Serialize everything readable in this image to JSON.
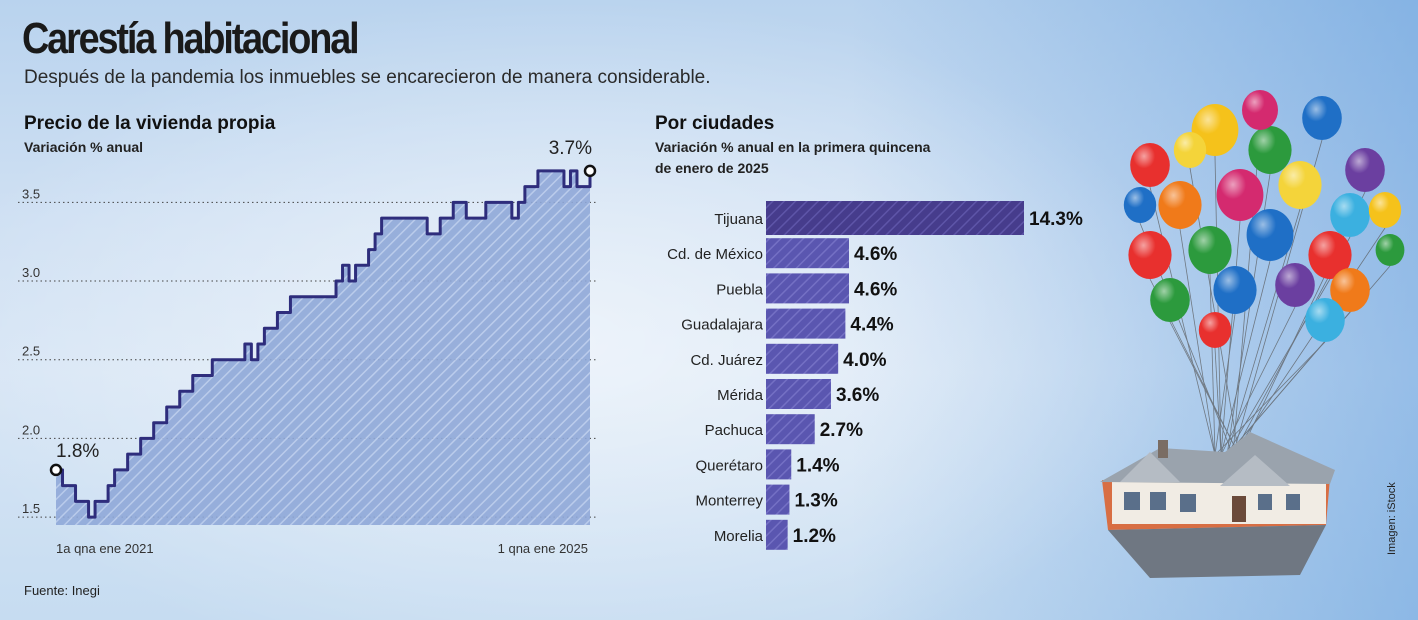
{
  "header": {
    "title": "Carestía habitacional",
    "subtitle": "Después de la pandemia los inmuebles se encarecieron de manera considerable."
  },
  "footer": {
    "source": "Fuente: Inegi",
    "image_credit": "Imagen: iStock"
  },
  "colors": {
    "line": "#2e2d7c",
    "area": "#8fa8d8",
    "bar": "#5a56b0",
    "bar_top": "#463c8c"
  },
  "chart_data": [
    {
      "type": "area",
      "title": "Precio de la vivienda propia",
      "subtitle": "Variación % anual",
      "ylim": [
        1.45,
        3.75
      ],
      "yticks": [
        "1.5",
        "2.0",
        "2.5",
        "3.0",
        "3.5"
      ],
      "ytick_values": [
        1.5,
        2.0,
        2.5,
        3.0,
        3.5
      ],
      "grid": true,
      "x_labels": {
        "start": "1a qna ene 2021",
        "end": "1 qna ene 2025"
      },
      "annotations": {
        "start": "1.8%",
        "end": "3.7%"
      },
      "values": [
        1.8,
        1.7,
        1.7,
        1.6,
        1.6,
        1.5,
        1.6,
        1.6,
        1.7,
        1.8,
        1.8,
        1.9,
        1.9,
        2.0,
        2.0,
        2.1,
        2.1,
        2.2,
        2.2,
        2.3,
        2.3,
        2.4,
        2.4,
        2.4,
        2.5,
        2.5,
        2.5,
        2.5,
        2.5,
        2.6,
        2.5,
        2.6,
        2.7,
        2.7,
        2.8,
        2.8,
        2.9,
        2.9,
        2.9,
        2.9,
        2.9,
        2.9,
        2.9,
        3.0,
        3.1,
        3.0,
        3.1,
        3.1,
        3.2,
        3.3,
        3.4,
        3.4,
        3.4,
        3.4,
        3.4,
        3.4,
        3.4,
        3.3,
        3.3,
        3.4,
        3.4,
        3.5,
        3.5,
        3.4,
        3.4,
        3.4,
        3.5,
        3.5,
        3.5,
        3.5,
        3.4,
        3.5,
        3.6,
        3.6,
        3.7,
        3.7,
        3.7,
        3.7,
        3.6,
        3.7,
        3.6,
        3.6,
        3.7
      ]
    },
    {
      "type": "bar",
      "orientation": "horizontal",
      "title": "Por ciudades",
      "subtitle_lines": [
        "Variación % anual en la primera quincena",
        "de enero de 2025"
      ],
      "categories": [
        "Tijuana",
        "Cd. de México",
        "Puebla",
        "Guadalajara",
        "Cd. Juárez",
        "Mérida",
        "Pachuca",
        "Querétaro",
        "Monterrey",
        "Morelia"
      ],
      "values": [
        14.3,
        4.6,
        4.6,
        4.4,
        4.0,
        3.6,
        2.7,
        1.4,
        1.3,
        1.2
      ],
      "labels": [
        "14.3%",
        "4.6%",
        "4.6%",
        "4.4%",
        "4.0%",
        "3.6%",
        "2.7%",
        "1.4%",
        "1.3%",
        "1.2%"
      ]
    }
  ]
}
